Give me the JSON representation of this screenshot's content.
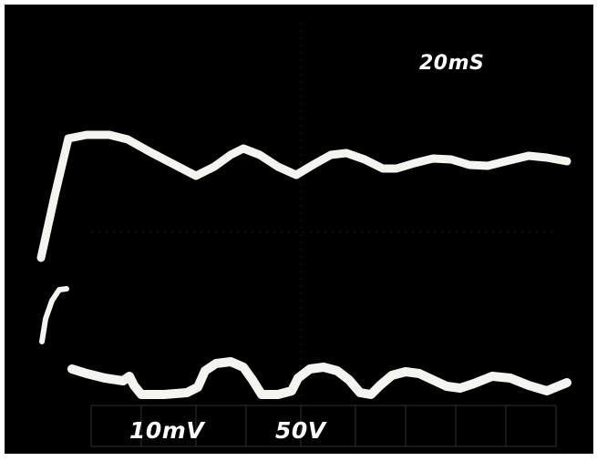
{
  "scope": {
    "timebase_label": "20mS",
    "channel1_scale_label": "10mV",
    "channel2_scale_label": "50V",
    "trace_color": "#f4f4f0",
    "grid_color": "#5a5a5a",
    "background_color": "#000000"
  }
}
